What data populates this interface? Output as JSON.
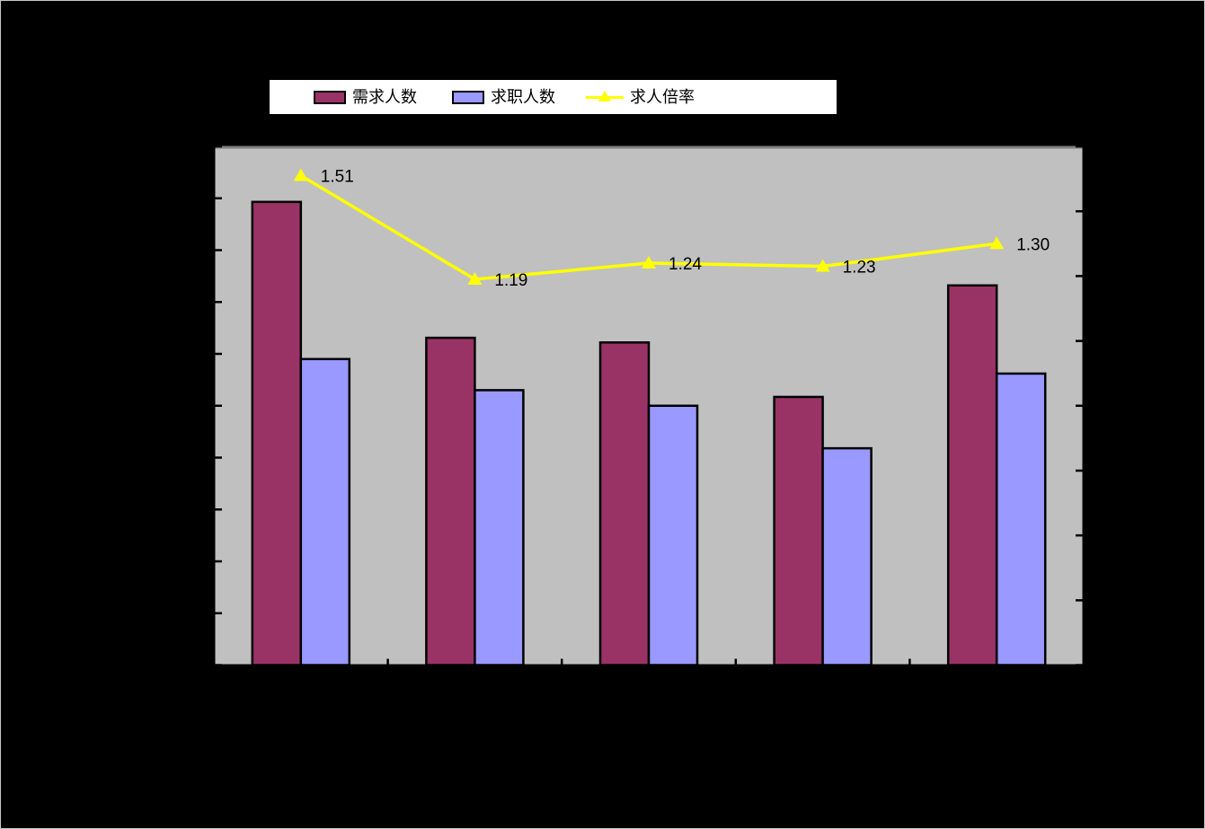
{
  "chart": {
    "background": "#000000",
    "plot_background": "#C0C0C0",
    "plot_top_border_color": "#808080",
    "axis_color": "#000000",
    "data_label_color": "#000000",
    "legend": {
      "background": "#FFFFFF",
      "border_color": "#000000",
      "items": [
        {
          "label": "需求人数",
          "type": "bar",
          "color": "#993366"
        },
        {
          "label": "求职人数",
          "type": "bar",
          "color": "#9999FF"
        },
        {
          "label": "求人倍率",
          "type": "line",
          "color": "#FFFF00"
        }
      ]
    }
  },
  "chart_data": {
    "type": "bar",
    "subtype": "grouped bars with overlaid line on secondary axis",
    "title": "",
    "categories": [
      "",
      "",
      "",
      "",
      ""
    ],
    "categories_note": "5 category groups; axis tick labels and title are not visible (rendered black on black background)",
    "series": [
      {
        "name": "需求人数",
        "type": "bar",
        "color": "#993366",
        "axis": "left",
        "values_fraction_of_left_axis": [
          0.893,
          0.631,
          0.622,
          0.517,
          0.732
        ]
      },
      {
        "name": "求职人数",
        "type": "bar",
        "color": "#9999FF",
        "axis": "left",
        "values_fraction_of_left_axis": [
          0.59,
          0.53,
          0.5,
          0.418,
          0.562
        ]
      },
      {
        "name": "求人倍率",
        "type": "line",
        "color": "#FFFF00",
        "marker": "triangle",
        "axis": "right",
        "values": [
          1.51,
          1.19,
          1.24,
          1.23,
          1.3
        ],
        "data_labels": [
          "1.51",
          "1.19",
          "1.24",
          "1.23",
          "1.30"
        ]
      }
    ],
    "axes": {
      "left": {
        "major_divisions": 10,
        "tick_labels_visible": false
      },
      "right": {
        "min": 0,
        "max": 1.6,
        "major_divisions": 8,
        "tick_labels_visible": false
      },
      "x": {
        "category_count": 5,
        "tick_labels_visible": false
      }
    },
    "legend_position": "top",
    "grid": false
  }
}
